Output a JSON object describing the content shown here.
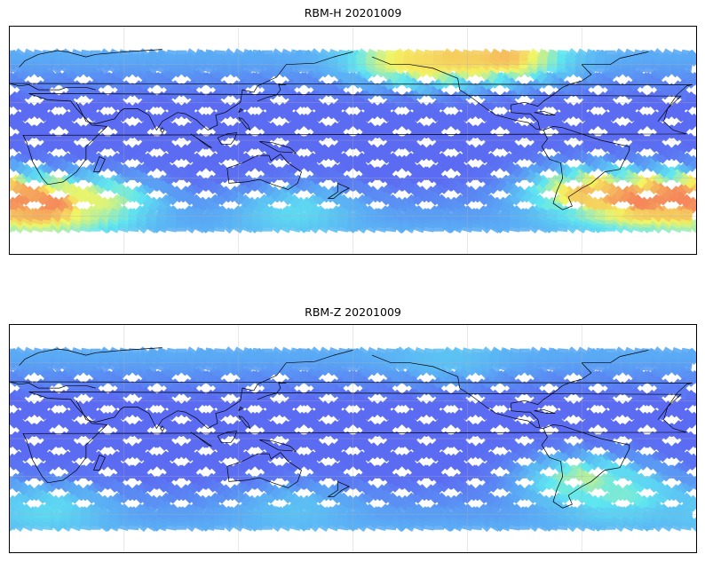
{
  "maps": [
    {
      "title": "RBM-H 20201009",
      "product": "RBM-H",
      "date": "20201009",
      "colormap": [
        "#5b5bf0",
        "#5aa9f5",
        "#5fe6f0",
        "#f5f560",
        "#f56a5a"
      ],
      "hotspots": [
        {
          "lon": 20,
          "lat": -52,
          "level": 0.95
        },
        {
          "lon": 45,
          "lat": -48,
          "level": 0.7
        },
        {
          "lon": 210,
          "lat": 64,
          "level": 0.75
        },
        {
          "lon": 230,
          "lat": 67,
          "level": 0.8
        },
        {
          "lon": 260,
          "lat": 67,
          "level": 0.85
        },
        {
          "lon": 300,
          "lat": -40,
          "level": 0.8
        },
        {
          "lon": 330,
          "lat": -48,
          "level": 0.95
        },
        {
          "lon": 355,
          "lat": -45,
          "level": 0.95
        },
        {
          "lon": 150,
          "lat": -55,
          "level": 0.45
        }
      ]
    },
    {
      "title": "RBM-Z 20201009",
      "product": "RBM-Z",
      "date": "20201009",
      "colormap": [
        "#5b5bf0",
        "#5aa9f5",
        "#5fe6f0",
        "#f5f560",
        "#f56a5a"
      ],
      "hotspots": [
        {
          "lon": 20,
          "lat": -55,
          "level": 0.45
        },
        {
          "lon": 150,
          "lat": -55,
          "level": 0.35
        },
        {
          "lon": 230,
          "lat": 66,
          "level": 0.35
        },
        {
          "lon": 300,
          "lat": -32,
          "level": 0.65
        },
        {
          "lon": 320,
          "lat": -45,
          "level": 0.55
        }
      ]
    }
  ]
}
